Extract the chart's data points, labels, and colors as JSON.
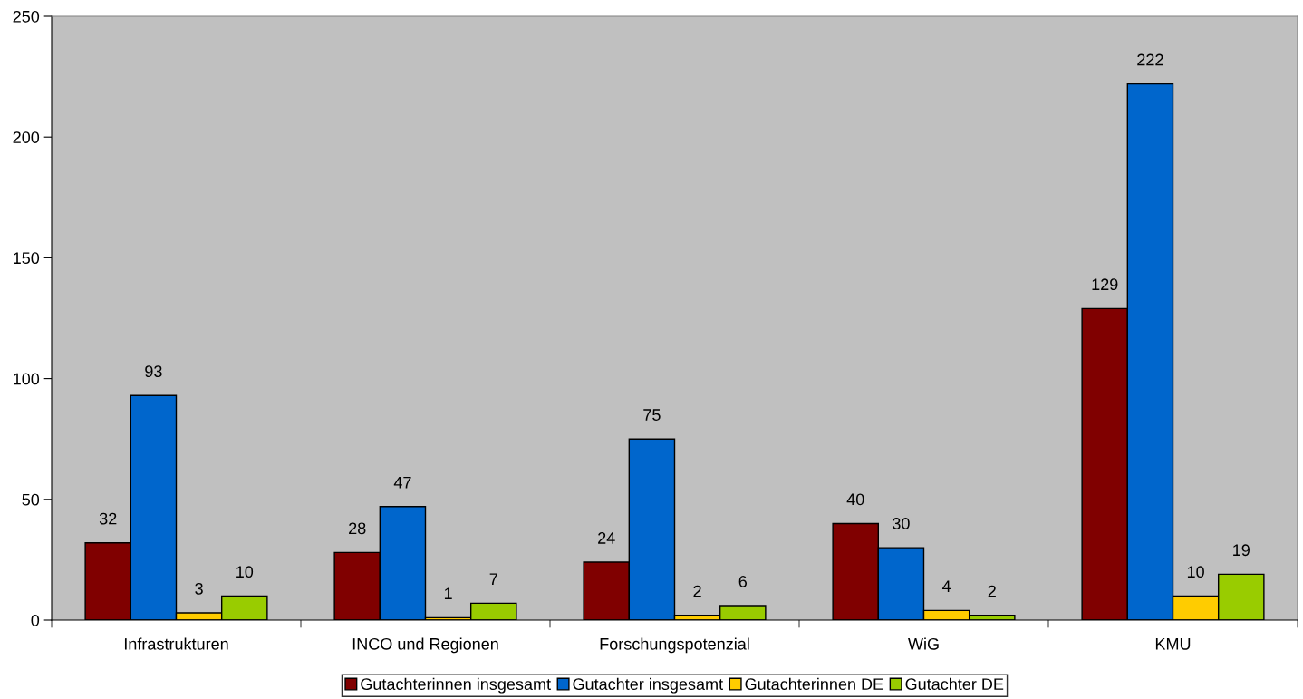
{
  "chart_data": {
    "type": "bar",
    "categories": [
      "Infrastrukturen",
      "INCO und Regionen",
      "Forschungspotenzial",
      "WiG",
      "KMU"
    ],
    "series": [
      {
        "name": "Gutachterinnen insgesamt",
        "color": "#800000",
        "values": [
          32,
          28,
          24,
          40,
          129
        ]
      },
      {
        "name": "Gutachter insgesamt",
        "color": "#0066cc",
        "values": [
          93,
          47,
          75,
          30,
          222
        ]
      },
      {
        "name": "Gutachterinnen DE",
        "color": "#ffcc00",
        "values": [
          3,
          1,
          2,
          4,
          10
        ]
      },
      {
        "name": "Gutachter DE",
        "color": "#99cc00",
        "values": [
          10,
          7,
          6,
          2,
          19
        ]
      }
    ],
    "ylim": [
      0,
      250
    ],
    "yticks": [
      0,
      50,
      100,
      150,
      200,
      250
    ],
    "data_labels": true,
    "legend": "bottom",
    "grid": false
  }
}
